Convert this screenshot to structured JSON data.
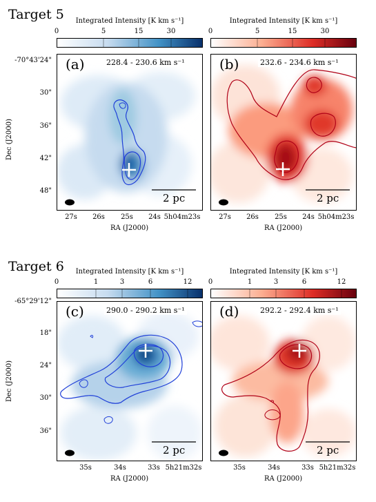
{
  "targets": [
    {
      "title": "Target 5",
      "colorbar": {
        "label": "Integrated Intensity [K km s⁻¹]",
        "ticks": [
          "0",
          "5",
          "15",
          "30"
        ]
      },
      "dec_ticks": [
        "-70°43'24\"",
        "30\"",
        "36\"",
        "42\"",
        "48\""
      ],
      "ra_ticks": [
        "27s",
        "26s",
        "25s",
        "24s",
        "5h04m23s"
      ],
      "panels": [
        {
          "letter": "(a)",
          "velocity": "228.4 - 230.6 km s⁻¹",
          "colormap": "blues",
          "scale_bar": "2 pc"
        },
        {
          "letter": "(b)",
          "velocity": "232.6 - 234.6 km s⁻¹",
          "colormap": "reds",
          "scale_bar": "2 pc"
        }
      ]
    },
    {
      "title": "Target 6",
      "colorbar": {
        "label": "Integrated Intensity [K km s⁻¹]",
        "ticks": [
          "0",
          "1",
          "3",
          "6",
          "12"
        ]
      },
      "dec_ticks": [
        "-65°29'12\"",
        "18\"",
        "24\"",
        "30\"",
        "36\""
      ],
      "ra_ticks": [
        "35s",
        "34s",
        "33s",
        "5h21m32s"
      ],
      "panels": [
        {
          "letter": "(c)",
          "velocity": "290.0 - 290.2 km s⁻¹",
          "colormap": "blues",
          "scale_bar": "2 pc"
        },
        {
          "letter": "(d)",
          "velocity": "292.2 - 292.4 km s⁻¹",
          "colormap": "reds",
          "scale_bar": "2 pc"
        }
      ]
    }
  ],
  "axes": {
    "xlabel": "RA (J2000)",
    "ylabel": "Dec (J2000)"
  },
  "colors": {
    "blue_peak": "#08306b",
    "blue_mid": "#4a90c8",
    "blue_low": "#d4e5f3",
    "red_peak": "#67000d",
    "red_mid": "#e0382c",
    "red_low": "#fde0d4",
    "blue_contour": "#1f3fd8",
    "red_contour": "#b00016"
  },
  "chart_data": [
    {
      "type": "heatmap",
      "panel": "a",
      "title": "228.4 - 230.6 km s⁻¹",
      "xlabel": "RA (J2000)",
      "ylabel": "Dec (J2000)",
      "colorbar_ticks": [
        0,
        5,
        15,
        30
      ],
      "colormap": "blues",
      "peak_marker": "+",
      "scale_bar": "2 pc"
    },
    {
      "type": "heatmap",
      "panel": "b",
      "title": "232.6 - 234.6 km s⁻¹",
      "xlabel": "RA (J2000)",
      "ylabel": "Dec (J2000)",
      "colorbar_ticks": [
        0,
        5,
        15,
        30
      ],
      "colormap": "reds",
      "peak_marker": "+",
      "scale_bar": "2 pc"
    },
    {
      "type": "heatmap",
      "panel": "c",
      "title": "290.0 - 290.2 km s⁻¹",
      "xlabel": "RA (J2000)",
      "ylabel": "Dec (J2000)",
      "colorbar_ticks": [
        0,
        1,
        3,
        6,
        12
      ],
      "colormap": "blues",
      "peak_marker": "+",
      "scale_bar": "2 pc"
    },
    {
      "type": "heatmap",
      "panel": "d",
      "title": "292.2 - 292.4 km s⁻¹",
      "xlabel": "RA (J2000)",
      "ylabel": "Dec (J2000)",
      "colorbar_ticks": [
        0,
        1,
        3,
        6,
        12
      ],
      "colormap": "reds",
      "peak_marker": "+",
      "scale_bar": "2 pc"
    }
  ]
}
